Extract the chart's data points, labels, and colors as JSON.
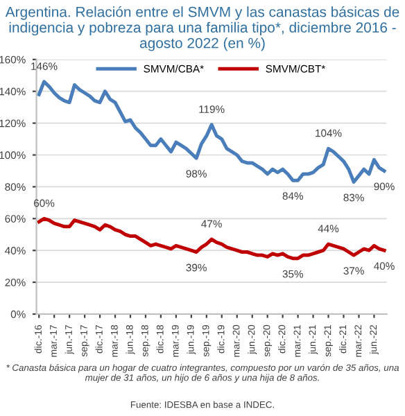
{
  "chart_data": {
    "type": "line",
    "title": "Argentina. Relación entre el SMVM y las canastas básicas de indigencia y pobreza para una familia tipo*, diciembre 2016 - agosto 2022 (en %)",
    "categories": [
      "dic.-16",
      null,
      null,
      "mar.-17",
      null,
      null,
      "jun.-17",
      null,
      null,
      "sep.-17",
      null,
      null,
      "dic.-17",
      null,
      null,
      "mar.-18",
      null,
      null,
      "jun.-18",
      null,
      null,
      "sep.-18",
      null,
      null,
      "dic.-18",
      null,
      null,
      "mar.-19",
      null,
      null,
      "jun.-19",
      null,
      null,
      "sep.-19",
      null,
      null,
      "dic.-19",
      null,
      null,
      "mar.-20",
      null,
      null,
      "jun.-20",
      null,
      null,
      "sep.-20",
      null,
      null,
      "dic.-20",
      null,
      null,
      "mar.-21",
      null,
      null,
      "jun.-21",
      null,
      null,
      "sep.-21",
      null,
      null,
      "dic.-21",
      null,
      null,
      "mar.-22",
      null,
      null,
      "jun.-22",
      null,
      null
    ],
    "series": [
      {
        "name": "SMVM/CBA*",
        "color": "#4a7ebb",
        "values": [
          138,
          146,
          143,
          139,
          136,
          134,
          133,
          144,
          141,
          139,
          137,
          134,
          133,
          140,
          135,
          133,
          127,
          121,
          122,
          117,
          114,
          110,
          106,
          106,
          110,
          106,
          102,
          108,
          106,
          104,
          101,
          98,
          107,
          112,
          119,
          112,
          110,
          104,
          102,
          100,
          96,
          95,
          95,
          93,
          91,
          88,
          91,
          89,
          91,
          88,
          84,
          84,
          88,
          88,
          89,
          92,
          94,
          104,
          102,
          99,
          96,
          91,
          83,
          87,
          91,
          88,
          97,
          92,
          90
        ],
        "value_labels": [
          null,
          "146%",
          null,
          null,
          null,
          null,
          null,
          null,
          null,
          null,
          null,
          null,
          null,
          null,
          null,
          null,
          null,
          null,
          null,
          null,
          null,
          null,
          null,
          null,
          null,
          null,
          null,
          null,
          null,
          null,
          null,
          "98%",
          null,
          null,
          "119%",
          null,
          null,
          null,
          null,
          null,
          null,
          null,
          null,
          null,
          null,
          null,
          null,
          null,
          null,
          null,
          "84%",
          null,
          null,
          null,
          null,
          null,
          null,
          "104%",
          null,
          null,
          null,
          null,
          "83%",
          null,
          null,
          null,
          null,
          null,
          "90%"
        ]
      },
      {
        "name": "SMVM/CBT*",
        "color": "#c00000",
        "values": [
          58,
          60,
          59,
          57,
          56,
          55,
          55,
          59,
          58,
          57,
          56,
          55,
          53,
          56,
          55,
          53,
          52,
          50,
          49,
          49,
          47,
          45,
          43,
          44,
          43,
          42,
          41,
          43,
          42,
          41,
          40,
          39,
          42,
          44,
          47,
          45,
          44,
          42,
          41,
          40,
          39,
          39,
          38,
          37,
          37,
          36,
          38,
          37,
          38,
          36,
          35,
          35,
          37,
          37,
          38,
          39,
          40,
          44,
          43,
          42,
          41,
          39,
          37,
          39,
          41,
          40,
          43,
          41,
          40
        ],
        "value_labels": [
          null,
          "60%",
          null,
          null,
          null,
          null,
          null,
          null,
          null,
          null,
          null,
          null,
          null,
          null,
          null,
          null,
          null,
          null,
          null,
          null,
          null,
          null,
          null,
          null,
          null,
          null,
          null,
          null,
          null,
          null,
          null,
          "39%",
          null,
          null,
          "47%",
          null,
          null,
          null,
          null,
          null,
          null,
          null,
          null,
          null,
          null,
          null,
          null,
          null,
          null,
          null,
          "35%",
          null,
          null,
          null,
          null,
          null,
          null,
          "44%",
          null,
          null,
          null,
          null,
          "37%",
          null,
          null,
          null,
          null,
          null,
          "40%"
        ]
      }
    ],
    "ylim": [
      0,
      160
    ],
    "yticks": [
      {
        "value": 0,
        "label": "0%"
      },
      {
        "value": 20,
        "label": "20%"
      },
      {
        "value": 40,
        "label": "40%"
      },
      {
        "value": 60,
        "label": "60%"
      },
      {
        "value": 80,
        "label": "80%"
      },
      {
        "value": 100,
        "label": "100%"
      },
      {
        "value": 120,
        "label": "120%"
      },
      {
        "value": 140,
        "label": "140%"
      },
      {
        "value": 160,
        "label": "160%"
      }
    ],
    "grid": "y",
    "legend": "top",
    "marker": "none",
    "line_style": "solid",
    "annotations": [
      "* Canasta básica para un hogar de cuatro integrantes, compuesto por un varón de 35 años, una mujer de 31 años, un hijo de 6 años y una hija de 8 años.",
      "Fuente: IDESBA en base a INDEC."
    ]
  }
}
